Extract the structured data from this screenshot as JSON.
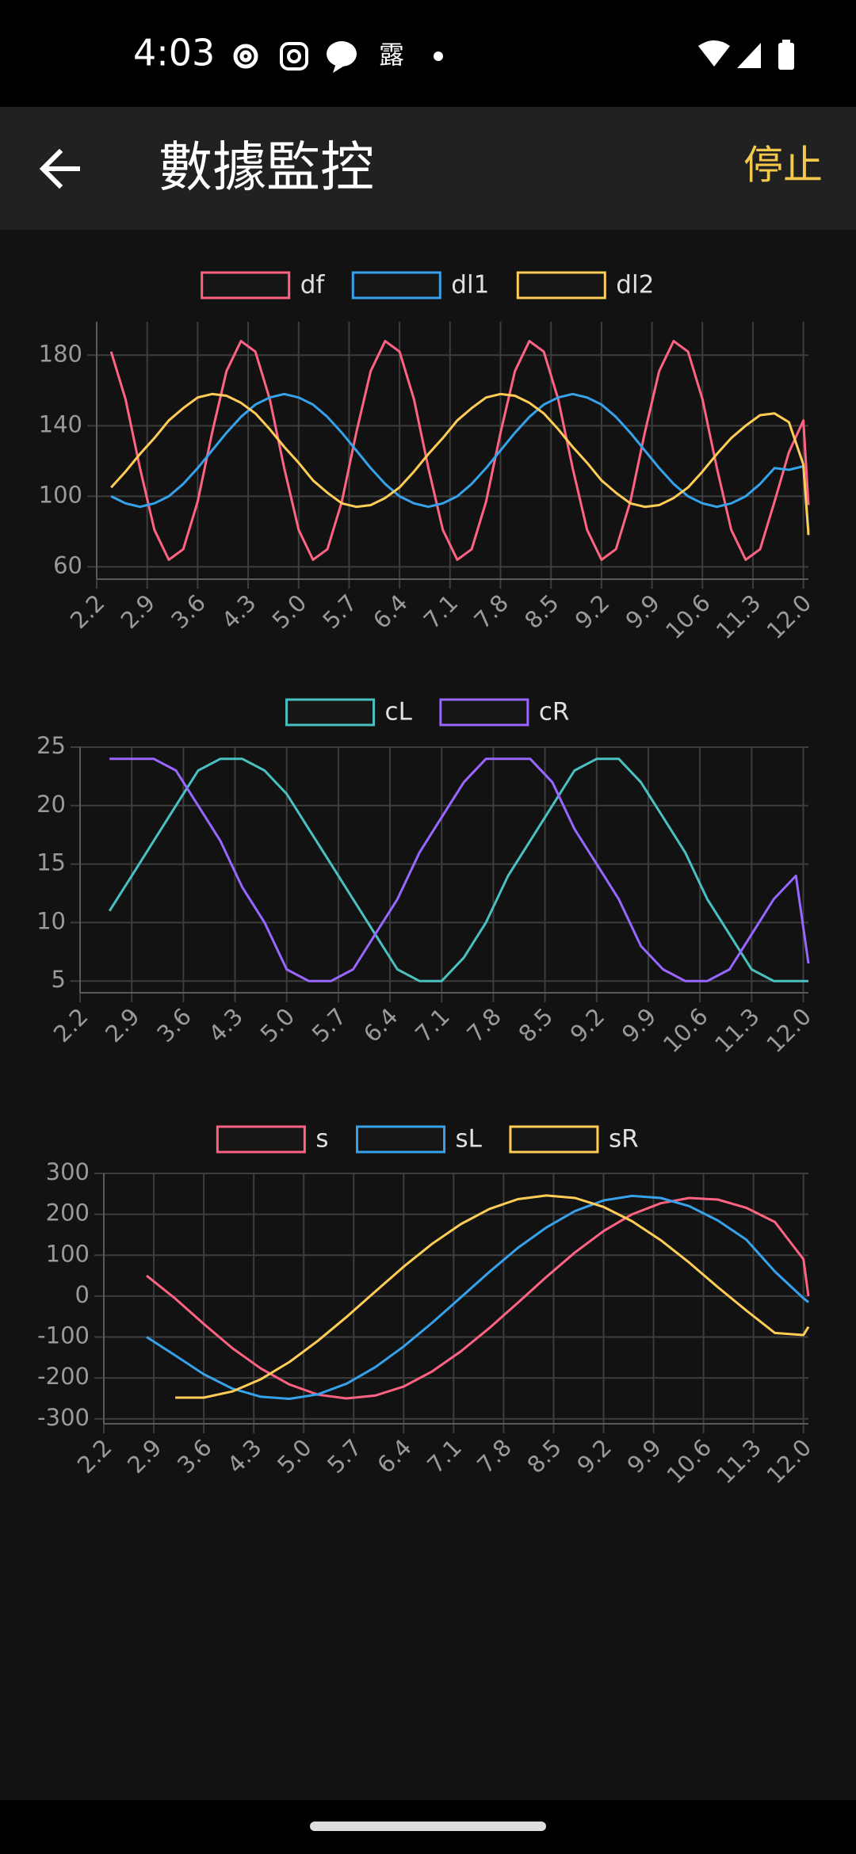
{
  "status_bar": {
    "time": "4:03",
    "notification": "露"
  },
  "app_bar": {
    "title": "數據監控",
    "action": "停止"
  },
  "chart_data": [
    {
      "type": "line",
      "x": [
        2.4,
        2.6,
        2.8,
        3.0,
        3.2,
        3.4,
        3.6,
        3.8,
        4.0,
        4.2,
        4.4,
        4.6,
        4.8,
        5.0,
        5.2,
        5.4,
        5.6,
        5.8,
        6.0,
        6.2,
        6.4,
        6.6,
        6.8,
        7.0,
        7.2,
        7.4,
        7.6,
        7.8,
        8.0,
        8.2,
        8.4,
        8.6,
        8.8,
        9.0,
        9.2,
        9.4,
        9.6,
        9.8,
        10.0,
        10.2,
        10.4,
        10.6,
        10.8,
        11.0,
        11.2,
        11.4,
        11.6,
        11.8,
        12.0,
        12.07
      ],
      "series": [
        {
          "name": "df",
          "color": "#ff6384",
          "values": [
            182,
            155,
            116,
            81,
            64,
            70,
            97,
            136,
            171,
            188,
            182,
            155,
            116,
            81,
            64,
            70,
            97,
            136,
            171,
            188,
            182,
            155,
            116,
            81,
            64,
            70,
            97,
            136,
            171,
            188,
            182,
            155,
            116,
            81,
            64,
            70,
            97,
            136,
            171,
            188,
            182,
            155,
            116,
            81,
            64,
            70,
            97,
            125,
            143,
            95
          ]
        },
        {
          "name": "dl1",
          "color": "#36a2eb",
          "values": [
            100,
            96,
            94,
            96,
            100,
            107,
            116,
            126,
            136,
            145,
            152,
            156,
            158,
            156,
            152,
            145,
            136,
            126,
            116,
            107,
            100,
            96,
            94,
            96,
            100,
            107,
            116,
            126,
            136,
            145,
            152,
            156,
            158,
            156,
            152,
            145,
            136,
            126,
            116,
            107,
            100,
            96,
            94,
            96,
            100,
            107,
            116,
            115,
            117,
            80
          ]
        },
        {
          "name": "dl2",
          "color": "#ffcd56",
          "values": [
            105,
            114,
            124,
            133,
            143,
            150,
            156,
            158,
            157,
            153,
            147,
            138,
            128,
            119,
            109,
            102,
            96,
            94,
            95,
            99,
            105,
            114,
            124,
            133,
            143,
            150,
            156,
            158,
            157,
            153,
            147,
            138,
            128,
            119,
            109,
            102,
            96,
            94,
            95,
            99,
            105,
            114,
            124,
            133,
            140,
            146,
            147,
            142,
            118,
            78
          ]
        }
      ],
      "xlim": [
        2.2,
        12.07
      ],
      "xticks": [
        2.2,
        2.9,
        3.6,
        4.3,
        {
          "value": 5,
          "label": "5.0"
        },
        5.7,
        6.4,
        7.1,
        7.8,
        8.5,
        9.2,
        9.9,
        10.6,
        11.3,
        {
          "value": 12,
          "label": "12.0"
        }
      ],
      "ylim": [
        53,
        199
      ],
      "yticks": [
        60,
        100,
        140,
        180
      ],
      "grid": true,
      "legend": "top"
    },
    {
      "type": "line",
      "x": [
        2.6,
        2.9,
        3.2,
        3.5,
        3.8,
        4.1,
        4.4,
        4.7,
        5.0,
        5.3,
        5.6,
        5.9,
        6.2,
        6.5,
        6.8,
        7.1,
        7.4,
        7.7,
        8.0,
        8.3,
        8.6,
        8.9,
        9.2,
        9.5,
        9.8,
        10.1,
        10.4,
        10.7,
        11.0,
        11.3,
        11.6,
        11.9,
        12.07
      ],
      "series": [
        {
          "name": "cL",
          "color": "#4bc0c0",
          "values": [
            11,
            14,
            17,
            20,
            23,
            24,
            24,
            23,
            21,
            18,
            15,
            12,
            9,
            6,
            5,
            5,
            7,
            10,
            14,
            17,
            20,
            23,
            24,
            24,
            22,
            19,
            16,
            12,
            9,
            6,
            5,
            5,
            5
          ]
        },
        {
          "name": "cR",
          "color": "#9966ff",
          "values": [
            24,
            24,
            24,
            23,
            20,
            17,
            13,
            10,
            6,
            5,
            5,
            6,
            9,
            12,
            16,
            19,
            22,
            24,
            24,
            24,
            22,
            18,
            15,
            12,
            8,
            6,
            5,
            5,
            6,
            9,
            12,
            14,
            6.5
          ]
        }
      ],
      "xlim": [
        2.2,
        12.07
      ],
      "xticks": [
        2.2,
        2.9,
        3.6,
        4.3,
        {
          "value": 5,
          "label": "5.0"
        },
        5.7,
        6.4,
        7.1,
        7.8,
        8.5,
        9.2,
        9.9,
        10.6,
        11.3,
        {
          "value": 12,
          "label": "12.0"
        }
      ],
      "ylim": [
        4,
        25
      ],
      "yticks": [
        5,
        10,
        15,
        20,
        25
      ],
      "grid": true,
      "legend": "top"
    },
    {
      "type": "line",
      "x": [
        2.8,
        3.2,
        3.6,
        4.0,
        4.4,
        4.8,
        5.2,
        5.6,
        6.0,
        6.4,
        6.8,
        7.2,
        7.6,
        8.0,
        8.4,
        8.8,
        9.2,
        9.6,
        10.0,
        10.4,
        10.8,
        11.2,
        11.6,
        12.0,
        12.07
      ],
      "series": [
        {
          "name": "s",
          "color": "#ff6384",
          "values": [
            50,
            -6,
            -68,
            -127,
            -177,
            -216,
            -241,
            -250,
            -243,
            -221,
            -184,
            -135,
            -78,
            -16,
            47,
            107,
            159,
            200,
            227,
            240,
            236,
            216,
            181,
            90,
            0
          ]
        },
        {
          "name": "sL",
          "color": "#36a2eb",
          "values": [
            -100,
            -145,
            -191,
            -226,
            -246,
            -251,
            -240,
            -214,
            -174,
            -123,
            -65,
            -3,
            59,
            118,
            168,
            208,
            234,
            245,
            240,
            220,
            185,
            138,
            60,
            -5,
            -15
          ]
        },
        {
          "name": "sR",
          "color": "#ffcd56",
          "values": [
            null,
            -248,
            -248,
            -233,
            -203,
            -161,
            -109,
            -51,
            11,
            72,
            128,
            176,
            213,
            237,
            246,
            240,
            218,
            183,
            137,
            82,
            22,
            -35,
            -90,
            -95,
            -75
          ]
        }
      ],
      "xlim": [
        2.2,
        12.07
      ],
      "xticks": [
        2.2,
        2.9,
        3.6,
        4.3,
        {
          "value": 5,
          "label": "5.0"
        },
        5.7,
        6.4,
        7.1,
        7.8,
        8.5,
        9.2,
        9.9,
        10.6,
        11.3,
        {
          "value": 12,
          "label": "12.0"
        }
      ],
      "ylim": [
        -312,
        300
      ],
      "yticks": [
        -300,
        -200,
        -100,
        0,
        100,
        200,
        300
      ],
      "grid": true,
      "legend": "top"
    }
  ]
}
